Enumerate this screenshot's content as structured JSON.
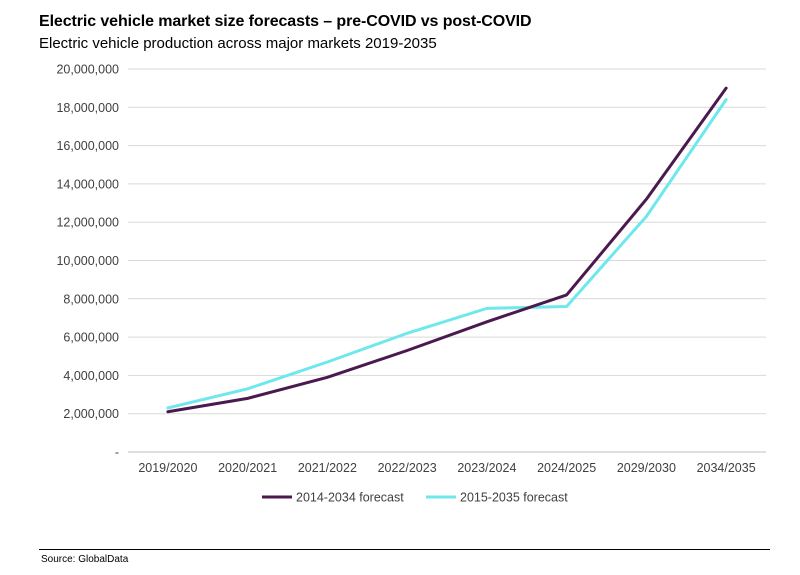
{
  "chart_data": {
    "type": "line",
    "title": "Electric vehicle market size forecasts – pre-COVID vs post-COVID",
    "subtitle": "Electric vehicle production across major markets 2019-2035",
    "source": "Source: GlobalData",
    "categories": [
      "2019/2020",
      "2020/2021",
      "2021/2022",
      "2022/2023",
      "2023/2024",
      "2024/2025",
      "2029/2030",
      "2034/2035"
    ],
    "y_ticks": [
      "-",
      "2,000,000",
      "4,000,000",
      "6,000,000",
      "8,000,000",
      "10,000,000",
      "12,000,000",
      "14,000,000",
      "16,000,000",
      "18,000,000",
      "20,000,000"
    ],
    "ylim": [
      0,
      20000000
    ],
    "grid": true,
    "legend_position": "bottom",
    "series": [
      {
        "name": "2014-2034 forecast",
        "color": "#4a1a4f",
        "values": [
          2100000,
          2800000,
          3900000,
          5300000,
          6800000,
          8200000,
          13200000,
          19000000
        ]
      },
      {
        "name": "2015-2035 forecast",
        "color": "#6ee8ec",
        "values": [
          2300000,
          3300000,
          4700000,
          6200000,
          7500000,
          7600000,
          12300000,
          18400000
        ]
      }
    ]
  }
}
